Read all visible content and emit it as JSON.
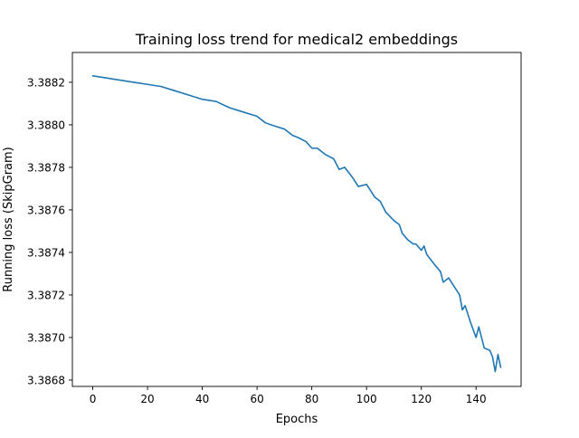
{
  "chart_data": {
    "type": "line",
    "title": "Training loss trend for medical2 embeddings",
    "xlabel": "Epochs",
    "ylabel": "Running loss (SkipGram)",
    "xlim": [
      -7.45,
      156.45
    ],
    "ylim": [
      3.38677,
      3.38834
    ],
    "xticks": [
      0,
      20,
      40,
      60,
      80,
      100,
      120,
      140
    ],
    "xtick_labels": [
      "0",
      "20",
      "40",
      "60",
      "80",
      "100",
      "120",
      "140"
    ],
    "yticks": [
      3.3868,
      3.387,
      3.3872,
      3.3874,
      3.3876,
      3.3878,
      3.388,
      3.3882
    ],
    "ytick_labels": [
      "3.3868",
      "3.3870",
      "3.3872",
      "3.3874",
      "3.3876",
      "3.3878",
      "3.3880",
      "3.3882"
    ],
    "grid": false,
    "legend": "none",
    "series": [
      {
        "color": "#1f77b4",
        "x": [
          0,
          5,
          10,
          15,
          20,
          25,
          30,
          35,
          40,
          45,
          50,
          55,
          60,
          63,
          65,
          70,
          73,
          75,
          78,
          80,
          82,
          85,
          88,
          90,
          92,
          95,
          97,
          100,
          103,
          105,
          107,
          110,
          112,
          113,
          115,
          117,
          118,
          120,
          121,
          122,
          125,
          127,
          128,
          130,
          132,
          134,
          135,
          136,
          138,
          140,
          141,
          143,
          145,
          146,
          147,
          148,
          149
        ],
        "y": [
          3.38823,
          3.38822,
          3.38821,
          3.3882,
          3.38819,
          3.38818,
          3.38816,
          3.38814,
          3.38812,
          3.38811,
          3.38808,
          3.38806,
          3.38804,
          3.38801,
          3.388,
          3.38798,
          3.38795,
          3.38794,
          3.38792,
          3.38789,
          3.38789,
          3.38786,
          3.38784,
          3.38779,
          3.3878,
          3.38775,
          3.38771,
          3.38772,
          3.38766,
          3.38764,
          3.38759,
          3.38755,
          3.38753,
          3.38749,
          3.38746,
          3.38744,
          3.38744,
          3.38741,
          3.38743,
          3.38739,
          3.38734,
          3.38731,
          3.38726,
          3.38728,
          3.38724,
          3.3872,
          3.38713,
          3.38715,
          3.38707,
          3.387,
          3.38705,
          3.38695,
          3.38694,
          3.38691,
          3.38684,
          3.38692,
          3.38686
        ]
      }
    ]
  }
}
